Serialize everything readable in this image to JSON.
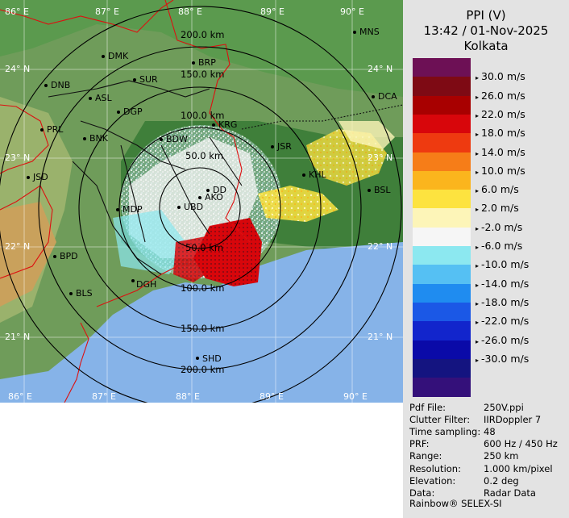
{
  "header": {
    "title": "PPI (V)",
    "datetime": "13:42 / 01-Nov-2025",
    "station": "Kolkata"
  },
  "scale": [
    {
      "color": "#6d1055",
      "label": ""
    },
    {
      "color": "#7e0a14",
      "label": "30.0 m/s"
    },
    {
      "color": "#a80000",
      "label": "26.0 m/s"
    },
    {
      "color": "#d8060b",
      "label": "22.0 m/s"
    },
    {
      "color": "#ee3a10",
      "label": "18.0 m/s"
    },
    {
      "color": "#f67d18",
      "label": "14.0 m/s"
    },
    {
      "color": "#fbb51d",
      "label": "10.0 m/s"
    },
    {
      "color": "#fde33f",
      "label": "6.0 m/s"
    },
    {
      "color": "#fdf5b8",
      "label": "2.0 m/s"
    },
    {
      "color": "#f6f6f6",
      "label": "-2.0 m/s"
    },
    {
      "color": "#8ce8f0",
      "label": "-6.0 m/s"
    },
    {
      "color": "#55c0f3",
      "label": "-10.0 m/s"
    },
    {
      "color": "#1f8cf0",
      "label": "-14.0 m/s"
    },
    {
      "color": "#1b58e6",
      "label": "-18.0 m/s"
    },
    {
      "color": "#1225cc",
      "label": "-22.0 m/s"
    },
    {
      "color": "#0a0aa8",
      "label": "-26.0 m/s"
    },
    {
      "color": "#141480",
      "label": "-30.0 m/s"
    },
    {
      "color": "#34107a",
      "label": ""
    }
  ],
  "info": [
    {
      "key": "Pdf File:",
      "value": "250V.ppi"
    },
    {
      "key": "Clutter Filter:",
      "value": "IIRDoppler 7"
    },
    {
      "key": "Time sampling:",
      "value": "48"
    },
    {
      "key": "PRF:",
      "value": "600 Hz / 450 Hz"
    },
    {
      "key": "Range:",
      "value": "250 km"
    },
    {
      "key": "Resolution:",
      "value": "1.000 km/pixel"
    },
    {
      "key": "Elevation:",
      "value": "0.2 deg"
    },
    {
      "key": "Data:",
      "value": "Radar Data"
    }
  ],
  "footer": "Rainbow® SELEX-SI",
  "map": {
    "top_lon_labels": [
      "86° E",
      "87° E",
      "88° E",
      "89° E",
      "90° E"
    ],
    "bottom_lon_labels": [
      "86° E",
      "87° E",
      "88° E",
      "89° E",
      "90° E"
    ],
    "left_lat_labels": [
      "24° N",
      "23° N",
      "22° N",
      "21° N"
    ],
    "right_lat_labels": [
      "24° N",
      "23° N",
      "22° N",
      "21° N"
    ],
    "range_labels_north": [
      "200.0 km",
      "150.0 km",
      "100.0 km",
      "50.0 km"
    ],
    "range_labels_south": [
      "50.0 km",
      "100.0 km",
      "150.0 km",
      "200.0 km"
    ],
    "cities": [
      "MNS",
      "DMK",
      "BRP",
      "DNB",
      "SUR",
      "ASL",
      "DGP",
      "DCA",
      "KRG",
      "PRL",
      "BNK",
      "BDW",
      "JSR",
      "KHL",
      "JSD",
      "BSL",
      "DD",
      "AKO",
      "MDP",
      "UBD",
      "BPD",
      "DGH",
      "BLS",
      "SHD"
    ]
  }
}
